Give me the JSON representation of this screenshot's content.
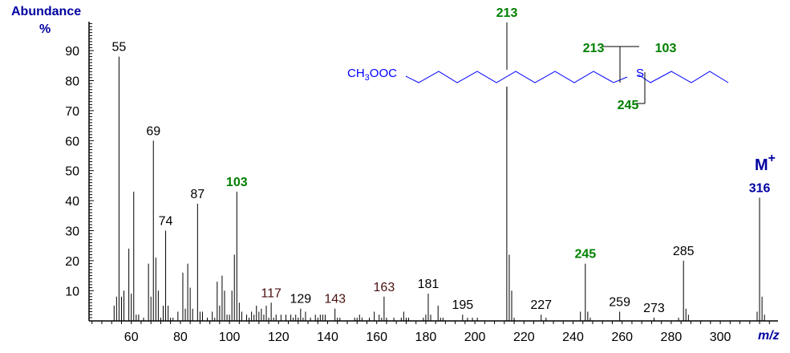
{
  "chart_data": {
    "type": "bar",
    "ylabel": "Abundance",
    "ylabel_unit": "%",
    "xlabel": "m/z",
    "xlim": [
      40,
      322
    ],
    "ylim": [
      0,
      100
    ],
    "x_ticks": [
      60,
      80,
      100,
      120,
      140,
      160,
      180,
      200,
      220,
      240,
      260,
      280,
      300
    ],
    "y_ticks": [
      10,
      20,
      30,
      40,
      50,
      60,
      70,
      80,
      90
    ],
    "colors": {
      "axis_label": "#0000a0",
      "peak": "#000000",
      "diagnostic": "#008000",
      "label": "#000000",
      "label_alt": "#4a1010",
      "structure": "#0000ff",
      "molecular_ion": "#0000a0"
    },
    "peaks": [
      [
        53,
        5
      ],
      [
        54,
        8
      ],
      [
        55,
        88
      ],
      [
        56,
        8
      ],
      [
        57,
        10
      ],
      [
        59,
        24
      ],
      [
        60,
        9
      ],
      [
        61,
        43
      ],
      [
        62,
        2
      ],
      [
        63,
        2
      ],
      [
        65,
        1
      ],
      [
        67,
        19
      ],
      [
        68,
        8
      ],
      [
        69,
        60
      ],
      [
        70,
        21
      ],
      [
        71,
        10
      ],
      [
        72,
        1
      ],
      [
        73,
        5
      ],
      [
        74,
        30
      ],
      [
        75,
        5
      ],
      [
        76,
        1
      ],
      [
        77,
        1
      ],
      [
        79,
        3
      ],
      [
        81,
        16
      ],
      [
        82,
        4
      ],
      [
        83,
        19
      ],
      [
        84,
        11
      ],
      [
        85,
        4
      ],
      [
        87,
        39
      ],
      [
        88,
        3
      ],
      [
        89,
        3
      ],
      [
        91,
        1
      ],
      [
        93,
        3
      ],
      [
        94,
        1
      ],
      [
        95,
        13
      ],
      [
        96,
        5
      ],
      [
        97,
        15
      ],
      [
        98,
        10
      ],
      [
        99,
        2
      ],
      [
        100,
        2
      ],
      [
        101,
        10
      ],
      [
        102,
        22
      ],
      [
        103,
        43
      ],
      [
        104,
        6
      ],
      [
        105,
        3
      ],
      [
        107,
        2
      ],
      [
        108,
        1
      ],
      [
        109,
        3
      ],
      [
        110,
        2
      ],
      [
        111,
        5
      ],
      [
        112,
        3
      ],
      [
        113,
        4
      ],
      [
        114,
        2
      ],
      [
        115,
        5
      ],
      [
        116,
        1
      ],
      [
        117,
        6
      ],
      [
        118,
        1
      ],
      [
        119,
        2
      ],
      [
        121,
        2
      ],
      [
        123,
        2
      ],
      [
        125,
        2
      ],
      [
        126,
        1
      ],
      [
        127,
        2
      ],
      [
        128,
        1
      ],
      [
        129,
        4
      ],
      [
        130,
        1
      ],
      [
        131,
        3
      ],
      [
        133,
        1
      ],
      [
        135,
        2
      ],
      [
        136,
        1
      ],
      [
        137,
        2
      ],
      [
        138,
        2
      ],
      [
        139,
        2
      ],
      [
        143,
        4
      ],
      [
        144,
        1
      ],
      [
        145,
        1
      ],
      [
        151,
        1
      ],
      [
        152,
        1
      ],
      [
        153,
        2
      ],
      [
        154,
        1
      ],
      [
        157,
        1
      ],
      [
        159,
        3
      ],
      [
        161,
        2
      ],
      [
        162,
        1
      ],
      [
        163,
        8
      ],
      [
        164,
        1
      ],
      [
        167,
        1
      ],
      [
        170,
        1
      ],
      [
        171,
        3
      ],
      [
        172,
        1
      ],
      [
        173,
        1
      ],
      [
        179,
        1
      ],
      [
        180,
        2
      ],
      [
        181,
        9
      ],
      [
        182,
        2
      ],
      [
        185,
        5
      ],
      [
        186,
        1
      ],
      [
        187,
        1
      ],
      [
        195,
        2
      ],
      [
        197,
        1
      ],
      [
        199,
        1
      ],
      [
        201,
        1
      ],
      [
        213,
        100
      ],
      [
        214,
        22
      ],
      [
        215,
        10
      ],
      [
        216,
        1
      ],
      [
        227,
        2
      ],
      [
        229,
        1
      ],
      [
        243,
        3
      ],
      [
        245,
        19
      ],
      [
        246,
        3
      ],
      [
        247,
        1
      ],
      [
        259,
        3
      ],
      [
        273,
        1
      ],
      [
        283,
        1
      ],
      [
        285,
        20
      ],
      [
        286,
        4
      ],
      [
        287,
        2
      ],
      [
        315,
        3
      ],
      [
        316,
        41
      ],
      [
        317,
        8
      ],
      [
        318,
        2
      ]
    ],
    "peak_labels": [
      {
        "mz": 55,
        "text": "55",
        "style": "label"
      },
      {
        "mz": 69,
        "text": "69",
        "style": "label"
      },
      {
        "mz": 74,
        "text": "74",
        "style": "label"
      },
      {
        "mz": 87,
        "text": "87",
        "style": "label"
      },
      {
        "mz": 103,
        "text": "103",
        "style": "diagnostic"
      },
      {
        "mz": 117,
        "text": "117",
        "style": "label_alt"
      },
      {
        "mz": 129,
        "text": "129",
        "style": "label"
      },
      {
        "mz": 143,
        "text": "143",
        "style": "label_alt"
      },
      {
        "mz": 163,
        "text": "163",
        "style": "label_alt"
      },
      {
        "mz": 181,
        "text": "181",
        "style": "label"
      },
      {
        "mz": 195,
        "text": "195",
        "style": "label"
      },
      {
        "mz": 227,
        "text": "227",
        "style": "label"
      },
      {
        "mz": 245,
        "text": "245",
        "style": "diagnostic"
      },
      {
        "mz": 259,
        "text": "259",
        "style": "label"
      },
      {
        "mz": 273,
        "text": "273",
        "style": "label"
      },
      {
        "mz": 285,
        "text": "285",
        "style": "label"
      },
      {
        "mz": 316,
        "text": "316",
        "style": "molecular_ion"
      }
    ],
    "annotations": {
      "molecular_ion": "M",
      "molecular_ion_sup": "+",
      "structure_ester": "CH",
      "structure_ester_sub": "3",
      "structure_ester_rest": "OOC",
      "structure_sulfur": "S",
      "fragment_213_top": "213",
      "fragment_213_side": "213",
      "fragment_103": "103",
      "fragment_245": "245"
    }
  }
}
